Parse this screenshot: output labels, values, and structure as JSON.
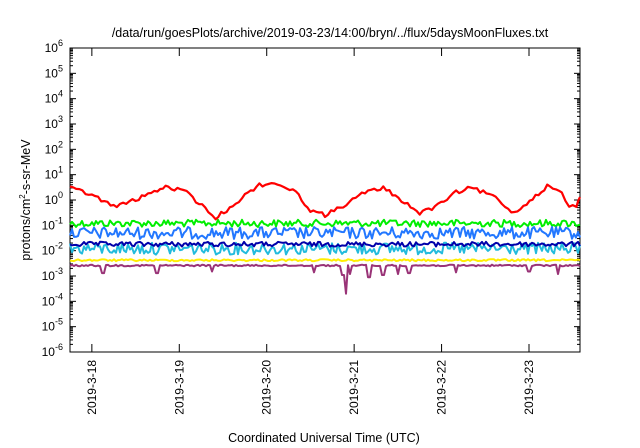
{
  "chart_data": {
    "type": "line",
    "title": "/data/run/goesPlots/archive/2019-03-23/14:00/bryn/../flux/5daysMoonFluxes.txt",
    "xlabel": "Coordinated Universal Time (UTC)",
    "ylabel": "protons/cm2-s-sr-MeV",
    "ylabel_parts": {
      "before": "protons/cm",
      "sup": "2",
      "after": "-s-sr-MeV"
    },
    "yscale": "log",
    "ylim_exponents": [
      -6,
      6
    ],
    "ytick_exponents": [
      -6,
      -5,
      -4,
      -3,
      -2,
      -1,
      0,
      1,
      2,
      3,
      4,
      5,
      6
    ],
    "ytick_base": "10",
    "xlim": [
      "2019-03-17 18:00",
      "2019-03-23 14:00"
    ],
    "xticks": [
      {
        "label": "2019-3-18",
        "t": "2019-03-18"
      },
      {
        "label": "2019-3-19",
        "t": "2019-03-19"
      },
      {
        "label": "2019-3-20",
        "t": "2019-03-20"
      },
      {
        "label": "2019-3-21",
        "t": "2019-03-21"
      },
      {
        "label": "2019-3-22",
        "t": "2019-03-22"
      },
      {
        "label": "2019-3-23",
        "t": "2019-03-23"
      }
    ],
    "grid": false,
    "series": [
      {
        "color": "#ff0000",
        "points": [
          [
            "2019-03-17 18:00",
            3.0
          ],
          [
            "2019-03-18 00:00",
            1.6
          ],
          [
            "2019-03-18 06:00",
            0.55
          ],
          [
            "2019-03-18 12:00",
            1.0
          ],
          [
            "2019-03-18 18:00",
            2.5
          ],
          [
            "2019-03-18 21:00",
            3.3
          ],
          [
            "2019-03-19 02:00",
            2.0
          ],
          [
            "2019-03-19 08:00",
            0.35
          ],
          [
            "2019-03-19 10:00",
            0.2
          ],
          [
            "2019-03-19 13:00",
            0.4
          ],
          [
            "2019-03-19 18:00",
            1.5
          ],
          [
            "2019-03-19 22:00",
            4.0
          ],
          [
            "2019-03-20 03:00",
            4.5
          ],
          [
            "2019-03-20 08:00",
            2.0
          ],
          [
            "2019-03-20 12:00",
            0.4
          ],
          [
            "2019-03-20 16:00",
            0.25
          ],
          [
            "2019-03-20 21:00",
            0.6
          ],
          [
            "2019-03-21 03:00",
            2.0
          ],
          [
            "2019-03-21 08:00",
            3.0
          ],
          [
            "2019-03-21 13:00",
            1.0
          ],
          [
            "2019-03-21 18:00",
            0.3
          ],
          [
            "2019-03-21 23:00",
            0.6
          ],
          [
            "2019-03-22 04:00",
            2.0
          ],
          [
            "2019-03-22 08:00",
            3.0
          ],
          [
            "2019-03-22 14:00",
            1.5
          ],
          [
            "2019-03-22 20:00",
            0.3
          ],
          [
            "2019-03-23 01:00",
            1.2
          ],
          [
            "2019-03-23 05:00",
            3.5
          ],
          [
            "2019-03-23 09:00",
            2.0
          ],
          [
            "2019-03-23 11:00",
            0.5
          ],
          [
            "2019-03-23 13:00",
            0.6
          ],
          [
            "2019-03-23 14:00",
            1.3
          ]
        ]
      },
      {
        "color": "#00ee00",
        "level": 0.12,
        "spread": 0.18,
        "dips": []
      },
      {
        "color": "#2277ff",
        "level": 0.05,
        "spread": 0.3,
        "dips": []
      },
      {
        "color": "#22bbdd",
        "level": 0.012,
        "spread": 0.3,
        "dips": []
      },
      {
        "color": "#0000aa",
        "level": 0.018,
        "spread": 0.12,
        "dips": []
      },
      {
        "color": "#ffee00",
        "level": 0.0042,
        "spread": 0.05,
        "dips": []
      },
      {
        "color": "#993377",
        "level": 0.0026,
        "spread": 0.04,
        "dips": [
          [
            "2019-03-18 03:00",
            0.0013
          ],
          [
            "2019-03-18 18:00",
            0.0013
          ],
          [
            "2019-03-19 09:00",
            0.0015
          ],
          [
            "2019-03-20 13:00",
            0.0014
          ],
          [
            "2019-03-20 21:00",
            0.0011
          ],
          [
            "2019-03-20 23:00",
            0.0012
          ],
          [
            "2019-03-21 04:00",
            0.0009
          ],
          [
            "2019-03-21 08:00",
            0.0011
          ],
          [
            "2019-03-21 12:00",
            0.0012
          ],
          [
            "2019-03-21 15:00",
            0.0013
          ],
          [
            "2019-03-22 04:00",
            0.0014
          ],
          [
            "2019-03-23 00:00",
            0.0015
          ],
          [
            "2019-03-23 08:00",
            0.0012
          ],
          [
            "2019-03-20 21:30",
            0.0002
          ]
        ]
      }
    ]
  }
}
